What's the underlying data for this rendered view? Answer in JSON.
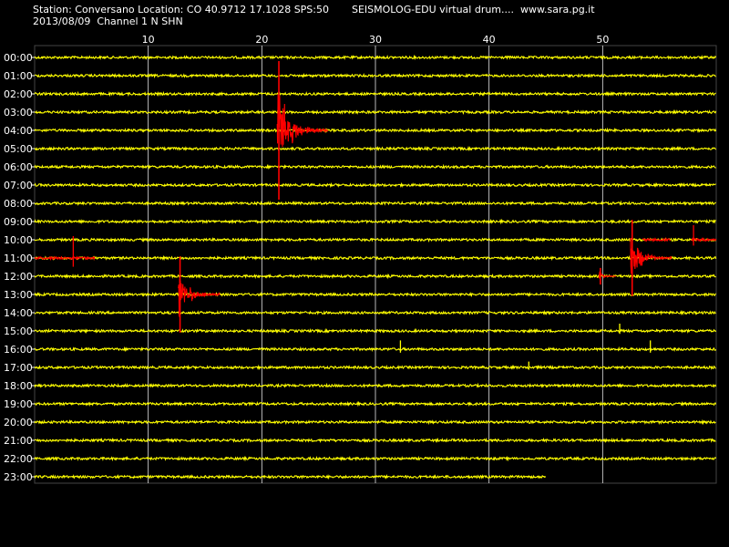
{
  "header": {
    "station": "Station: Conversano Location: CO 40.9712 17.1028 SPS:50",
    "date_channel": "2013/08/09  Channel 1 N SHN",
    "app_title": "SEISMOLOG-EDU virtual drum....  www.sara.pg.it"
  },
  "colors": {
    "background": "#000000",
    "trace": "#ffff00",
    "event": "#ff0000",
    "grid": "#ffffff"
  },
  "chart_data": {
    "type": "line",
    "xlabel": "",
    "ylabel": "",
    "xlim": [
      0,
      60
    ],
    "x_ticks": [
      10,
      20,
      30,
      40,
      50
    ],
    "hour_labels": [
      "00:00",
      "01:00",
      "02:00",
      "03:00",
      "04:00",
      "05:00",
      "06:00",
      "07:00",
      "08:00",
      "09:00",
      "10:00",
      "11:00",
      "12:00",
      "13:00",
      "14:00",
      "15:00",
      "16:00",
      "17:00",
      "18:00",
      "19:00",
      "20:00",
      "21:00",
      "22:00",
      "23:00"
    ],
    "last_trace_end_minute": 45,
    "events": [
      {
        "row": 4,
        "minute": 21.5,
        "amp": 1.0,
        "half_width": 4.3
      },
      {
        "row": 13,
        "minute": 12.8,
        "amp": 0.55,
        "half_width": 3.5
      },
      {
        "row": 11,
        "minute": 52.6,
        "amp": 0.55,
        "half_width": 3.5
      },
      {
        "row": 12,
        "minute": 49.8,
        "amp": 0.12,
        "half_width": 1.4
      }
    ],
    "red_segments": [
      {
        "row": 11,
        "start": 0,
        "end": 5.3
      },
      {
        "row": 10,
        "start": 53.5,
        "end": 56.0
      },
      {
        "row": 10,
        "start": 57.8,
        "end": 60
      }
    ],
    "spikes": [
      {
        "row": 11,
        "minute": 3.4,
        "amp": 0.3,
        "color": "event"
      },
      {
        "row": 10,
        "minute": 58.0,
        "amp": 0.2,
        "color": "event"
      },
      {
        "row": 15,
        "minute": 51.5,
        "amp": 0.1,
        "color": "trace"
      },
      {
        "row": 16,
        "minute": 32.2,
        "amp": 0.12,
        "color": "trace"
      },
      {
        "row": 16,
        "minute": 54.2,
        "amp": 0.12,
        "color": "trace"
      },
      {
        "row": 17,
        "minute": 43.5,
        "amp": 0.08,
        "color": "trace"
      }
    ]
  }
}
